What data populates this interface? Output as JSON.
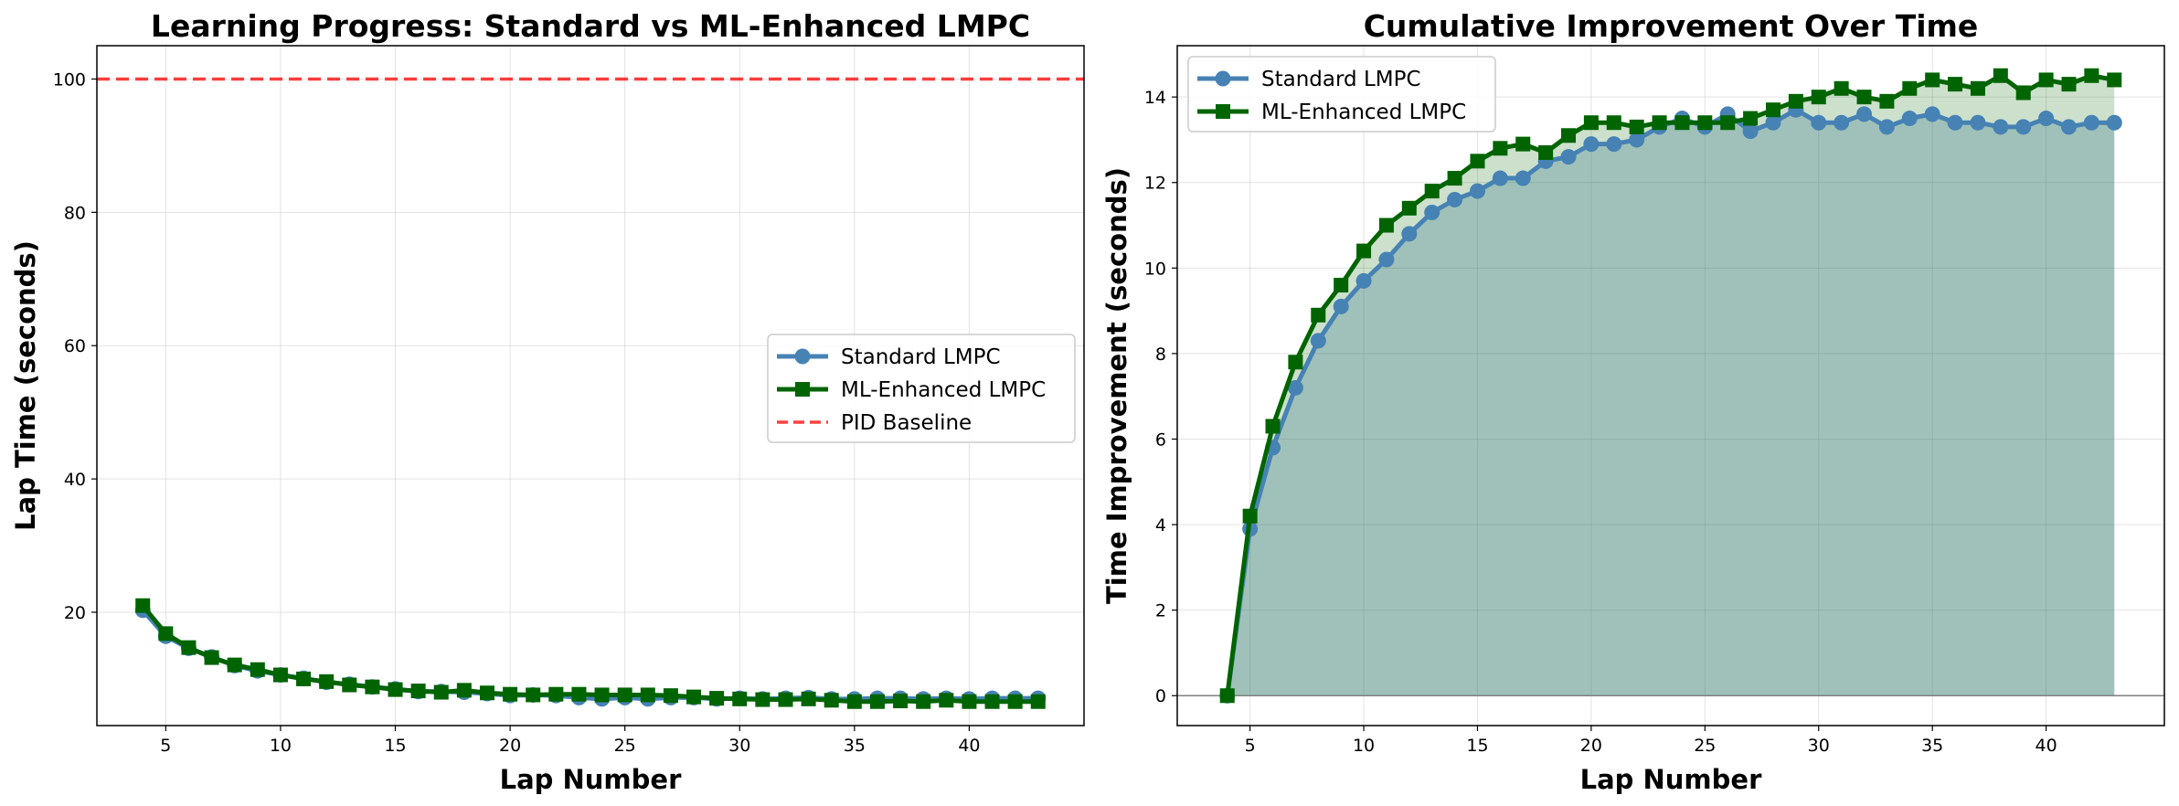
{
  "chart_data": [
    {
      "type": "line",
      "title": "Learning Progress: Standard vs ML-Enhanced LMPC",
      "xlabel": "Lap Number",
      "ylabel": "Lap Time (seconds)",
      "xlim": [
        2,
        45
      ],
      "ylim": [
        3,
        105
      ],
      "xticks": [
        5,
        10,
        15,
        20,
        25,
        30,
        35,
        40
      ],
      "yticks": [
        20,
        40,
        60,
        80,
        100
      ],
      "grid": true,
      "legend_position": "center-right",
      "x": [
        4,
        5,
        6,
        7,
        8,
        9,
        10,
        11,
        12,
        13,
        14,
        15,
        16,
        17,
        18,
        19,
        20,
        21,
        22,
        23,
        24,
        25,
        26,
        27,
        28,
        29,
        30,
        31,
        32,
        33,
        34,
        35,
        36,
        37,
        38,
        39,
        40,
        41,
        42,
        43
      ],
      "series": [
        {
          "name": "Standard LMPC",
          "color": "#4682b4",
          "marker": "circle",
          "values": [
            20.3,
            16.4,
            14.6,
            13.3,
            12.0,
            11.2,
            10.6,
            10.1,
            9.5,
            9.2,
            8.8,
            8.5,
            8.1,
            8.1,
            8.0,
            7.8,
            7.5,
            7.6,
            7.5,
            7.2,
            7.0,
            7.2,
            7.0,
            7.2,
            7.2,
            7.0,
            7.1,
            7.0,
            7.1,
            7.2,
            7.0,
            7.0,
            7.1,
            7.1,
            7.0,
            7.1,
            7.0,
            7.1,
            7.1,
            7.1
          ]
        },
        {
          "name": "ML-Enhanced LMPC",
          "color": "#006400",
          "marker": "square",
          "values": [
            21.0,
            16.8,
            14.7,
            13.2,
            12.1,
            11.4,
            10.6,
            10.0,
            9.6,
            9.1,
            8.8,
            8.4,
            8.2,
            8.0,
            8.3,
            7.9,
            7.7,
            7.6,
            7.7,
            7.7,
            7.6,
            7.6,
            7.6,
            7.5,
            7.3,
            7.1,
            7.0,
            6.9,
            6.9,
            7.0,
            6.8,
            6.6,
            6.6,
            6.7,
            6.6,
            6.8,
            6.6,
            6.6,
            6.6,
            6.6
          ]
        },
        {
          "name": "PID Baseline",
          "color": "#ff0000",
          "style": "dashed-horizontal",
          "value": 100
        }
      ]
    },
    {
      "type": "area",
      "title": "Cumulative Improvement Over Time",
      "xlabel": "Lap Number",
      "ylabel": "Time Improvement (seconds)",
      "xlim": [
        1.8,
        45.2
      ],
      "ylim": [
        -0.7,
        15.2
      ],
      "xticks": [
        5,
        10,
        15,
        20,
        25,
        30,
        35,
        40
      ],
      "yticks": [
        0,
        2,
        4,
        6,
        8,
        10,
        12,
        14
      ],
      "grid": true,
      "legend_position": "top-left",
      "x": [
        4,
        5,
        6,
        7,
        8,
        9,
        10,
        11,
        12,
        13,
        14,
        15,
        16,
        17,
        18,
        19,
        20,
        21,
        22,
        23,
        24,
        25,
        26,
        27,
        28,
        29,
        30,
        31,
        32,
        33,
        34,
        35,
        36,
        37,
        38,
        39,
        40,
        41,
        42,
        43
      ],
      "series": [
        {
          "name": "Standard LMPC",
          "color": "#4682b4",
          "marker": "circle",
          "values": [
            0,
            3.9,
            5.8,
            7.2,
            8.3,
            9.1,
            9.7,
            10.2,
            10.8,
            11.3,
            11.6,
            11.8,
            12.1,
            12.1,
            12.5,
            12.6,
            12.9,
            12.9,
            13.0,
            13.3,
            13.5,
            13.3,
            13.6,
            13.2,
            13.4,
            13.7,
            13.4,
            13.4,
            13.6,
            13.3,
            13.5,
            13.6,
            13.4,
            13.4,
            13.3,
            13.3,
            13.5,
            13.3,
            13.4,
            13.4
          ]
        },
        {
          "name": "ML-Enhanced LMPC",
          "color": "#006400",
          "marker": "square",
          "values": [
            0,
            4.2,
            6.3,
            7.8,
            8.9,
            9.6,
            10.4,
            11.0,
            11.4,
            11.8,
            12.1,
            12.5,
            12.8,
            12.9,
            12.7,
            13.1,
            13.4,
            13.4,
            13.3,
            13.4,
            13.4,
            13.4,
            13.4,
            13.5,
            13.7,
            13.9,
            14.0,
            14.2,
            14.0,
            13.9,
            14.2,
            14.4,
            14.3,
            14.2,
            14.5,
            14.1,
            14.4,
            14.3,
            14.5,
            14.4
          ]
        }
      ]
    }
  ]
}
